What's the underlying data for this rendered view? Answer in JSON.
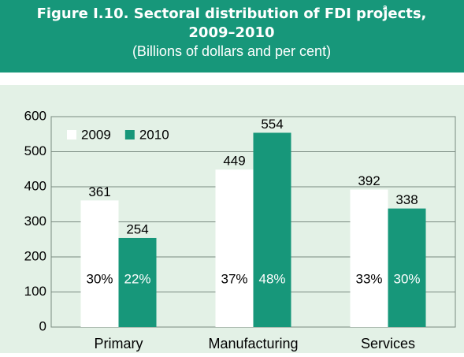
{
  "chart_data": {
    "type": "bar",
    "title": "Figure I.10. Sectoral distribution of FDI projects,",
    "title_note": "a",
    "title_line2": "2009–2010",
    "subtitle": "(Billions of dollars and per cent)",
    "categories": [
      "Primary",
      "Manufacturing",
      "Services"
    ],
    "series": [
      {
        "name": "2009",
        "color": "#ffffff",
        "values": [
          361,
          449,
          392
        ],
        "share_labels": [
          "30%",
          "37%",
          "33%"
        ]
      },
      {
        "name": "2010",
        "color": "#17977a",
        "values": [
          254,
          554,
          338
        ],
        "share_labels": [
          "22%",
          "48%",
          "30%"
        ]
      }
    ],
    "ylim": [
      0,
      600
    ],
    "yticks": [
      0,
      100,
      200,
      300,
      400,
      500,
      600
    ],
    "grid": true,
    "legend": "top-left"
  }
}
